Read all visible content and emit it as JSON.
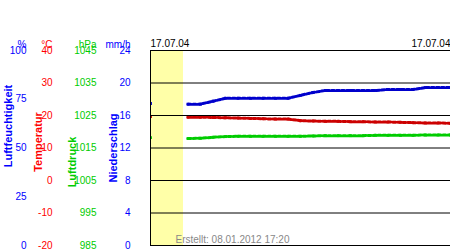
{
  "chart_data": {
    "type": "line",
    "caption": "Erstellt: 08.01.2012 17:20",
    "x": [
      0,
      1,
      2,
      3,
      4,
      5,
      6,
      7,
      8,
      9,
      10,
      11,
      12,
      13,
      14,
      15,
      16,
      17,
      18,
      19,
      20,
      21,
      22,
      23,
      24
    ],
    "xlim": [
      0,
      24
    ],
    "xticks": [
      {
        "value": 0,
        "label": "17.07.04"
      },
      {
        "value": 24,
        "label": "17.07.04"
      }
    ],
    "axes": [
      {
        "label": "Luftfeuchtigkeit",
        "unit": "%",
        "color": "#0000ff",
        "lim": [
          0,
          100
        ],
        "ticks": [
          0,
          25,
          50,
          75,
          100
        ]
      },
      {
        "label": "Temperatur",
        "unit": "°C",
        "color": "#ff0000",
        "lim": [
          -20,
          40
        ],
        "ticks": [
          -20,
          -10,
          0,
          10,
          20,
          30,
          40
        ]
      },
      {
        "label": "Luftdruck",
        "unit": "hPa",
        "color": "#00cc00",
        "lim": [
          985,
          1045
        ],
        "ticks": [
          985,
          995,
          1005,
          1015,
          1025,
          1035,
          1045
        ]
      },
      {
        "label": "Niederschlag",
        "unit": "mm/h",
        "color": "#0000ff",
        "lim": [
          0,
          24
        ],
        "ticks": [
          0,
          4,
          8,
          12,
          16,
          20,
          24
        ],
        "grid": true
      }
    ],
    "series": [
      {
        "name": "Luftfeuchtigkeit",
        "color": "#0000cc",
        "marker": "square",
        "line_style": "dotted",
        "values": [
          72.8,
          null,
          null,
          72.5,
          72.5,
          74,
          75.5,
          75.5,
          75.5,
          75.5,
          75.5,
          75.5,
          77,
          78.5,
          79.5,
          79.5,
          79.5,
          79.5,
          79.5,
          80,
          80,
          80,
          81,
          81,
          81
        ]
      },
      {
        "name": "Temperatur",
        "color": "#cc0000",
        "marker": "square",
        "line_style": "dotted",
        "values": [
          19.7,
          null,
          null,
          19.5,
          19.5,
          19.4,
          19.3,
          19.2,
          19.1,
          19.0,
          18.9,
          18.9,
          18.4,
          18.3,
          18.2,
          18.2,
          18.1,
          18.1,
          18.0,
          18.0,
          17.9,
          17.8,
          17.7,
          17.7,
          17.6
        ]
      },
      {
        "name": "Luftdruck",
        "color": "#00cc00",
        "marker": "square",
        "line_style": "dotted",
        "values": [
          1018.2,
          null,
          null,
          1017.9,
          1018.0,
          1018.3,
          1018.5,
          1018.6,
          1018.6,
          1018.6,
          1018.6,
          1018.6,
          1018.6,
          1018.7,
          1018.8,
          1018.8,
          1018.8,
          1018.8,
          1018.9,
          1018.9,
          1018.9,
          1018.9,
          1019.0,
          1019.0,
          1019.0
        ]
      }
    ]
  }
}
